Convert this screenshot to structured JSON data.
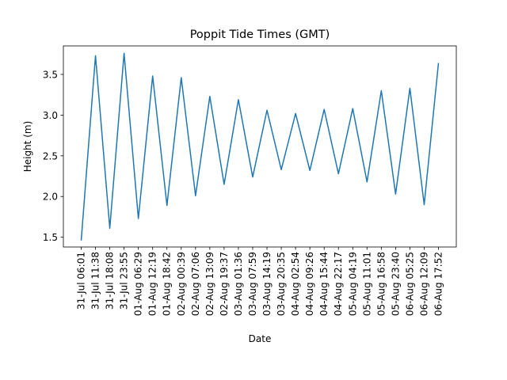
{
  "chart_data": {
    "type": "line",
    "title": "Poppit Tide Times (GMT)",
    "xlabel": "Date",
    "ylabel": "Height (m)",
    "ylim": [
      1.38,
      3.85
    ],
    "grid": false,
    "color": "#1f77b4",
    "yticks": [
      1.5,
      2.0,
      2.5,
      3.0,
      3.5
    ],
    "ytick_labels": [
      "1.5",
      "2.0",
      "2.5",
      "3.0",
      "3.5"
    ],
    "categories": [
      "31-Jul 06:01",
      "31-Jul 11:38",
      "31-Jul 18:08",
      "31-Jul 23:55",
      "01-Aug 06:29",
      "01-Aug 12:19",
      "01-Aug 18:42",
      "02-Aug 00:39",
      "02-Aug 07:06",
      "02-Aug 13:09",
      "02-Aug 19:37",
      "03-Aug 01:36",
      "03-Aug 07:59",
      "03-Aug 14:19",
      "03-Aug 20:35",
      "04-Aug 02:54",
      "04-Aug 09:26",
      "04-Aug 15:44",
      "04-Aug 22:17",
      "05-Aug 04:19",
      "05-Aug 11:01",
      "05-Aug 16:58",
      "05-Aug 23:40",
      "06-Aug 05:25",
      "06-Aug 12:09",
      "06-Aug 17:52"
    ],
    "values": [
      1.46,
      3.73,
      1.61,
      3.76,
      1.73,
      3.48,
      1.89,
      3.46,
      2.01,
      3.23,
      2.15,
      3.19,
      2.24,
      3.06,
      2.33,
      3.02,
      2.32,
      3.07,
      2.28,
      3.08,
      2.18,
      3.3,
      2.03,
      3.33,
      1.9,
      3.64
    ]
  }
}
